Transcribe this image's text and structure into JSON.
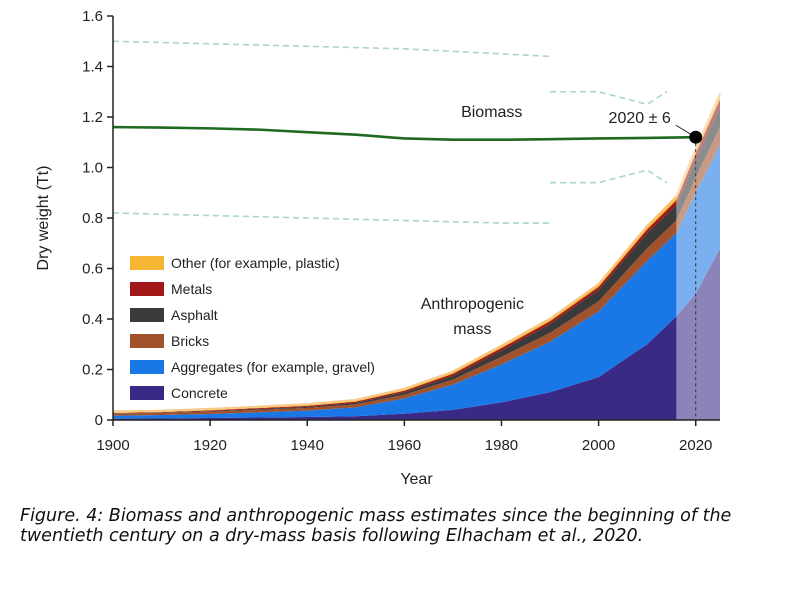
{
  "caption": "Figure. 4: Biomass and anthropogenic mass estimates since the beginning of the twentieth century on a dry-mass basis following Elhacham et al., 2020.",
  "chart_data": {
    "type": "area",
    "xlabel": "Year",
    "ylabel": "Dry weight (Tt)",
    "xlim": [
      1900,
      2025
    ],
    "ylim": [
      0,
      1.6
    ],
    "x_ticks": [
      1900,
      1920,
      1940,
      1960,
      1980,
      2000,
      2020
    ],
    "y_ticks": [
      0,
      0.2,
      0.4,
      0.6,
      0.8,
      1.0,
      1.2,
      1.4,
      1.6
    ],
    "y_tick_labels": [
      "0",
      "0.2",
      "0.4",
      "0.6",
      "0.8",
      "1.0",
      "1.2",
      "1.4",
      "1.6"
    ],
    "grid": false,
    "legend_position": "left",
    "x": [
      1900,
      1910,
      1920,
      1930,
      1940,
      1950,
      1960,
      1970,
      1980,
      1990,
      2000,
      2010,
      2016,
      2020,
      2025
    ],
    "stack_series": [
      {
        "name": "Concrete",
        "color": "#3a2a86",
        "values": [
          0.005,
          0.006,
          0.008,
          0.01,
          0.012,
          0.015,
          0.025,
          0.04,
          0.07,
          0.11,
          0.17,
          0.3,
          0.41,
          0.5,
          0.68
        ]
      },
      {
        "name": "Aggregates (for example, gravel)",
        "color": "#1a78e6",
        "values": [
          0.012,
          0.014,
          0.016,
          0.02,
          0.025,
          0.035,
          0.06,
          0.1,
          0.15,
          0.2,
          0.26,
          0.33,
          0.33,
          0.4,
          0.41
        ]
      },
      {
        "name": "Bricks",
        "color": "#a0522d",
        "values": [
          0.008,
          0.008,
          0.009,
          0.01,
          0.011,
          0.012,
          0.015,
          0.02,
          0.03,
          0.035,
          0.04,
          0.05,
          0.05,
          0.06,
          0.07
        ]
      },
      {
        "name": "Asphalt",
        "color": "#3a3a3a",
        "values": [
          0.001,
          0.001,
          0.002,
          0.003,
          0.004,
          0.006,
          0.01,
          0.015,
          0.025,
          0.035,
          0.045,
          0.06,
          0.06,
          0.07,
          0.08
        ]
      },
      {
        "name": "Metals",
        "color": "#a01818",
        "values": [
          0.002,
          0.002,
          0.003,
          0.004,
          0.004,
          0.005,
          0.006,
          0.008,
          0.01,
          0.011,
          0.012,
          0.015,
          0.02,
          0.025,
          0.03
        ]
      },
      {
        "name": "Other (for example, plastic)",
        "color": "#f5b731",
        "values": [
          0.002,
          0.002,
          0.002,
          0.002,
          0.003,
          0.003,
          0.004,
          0.005,
          0.006,
          0.007,
          0.008,
          0.01,
          0.012,
          0.015,
          0.02
        ]
      }
    ],
    "projection_start_year": 2016,
    "legend_order": [
      "Other (for example, plastic)",
      "Metals",
      "Asphalt",
      "Bricks",
      "Aggregates (for example, gravel)",
      "Concrete"
    ],
    "biomass": {
      "name": "Biomass",
      "color": "#1e6a1e",
      "x": [
        1900,
        1910,
        1920,
        1930,
        1940,
        1950,
        1960,
        1970,
        1980,
        1990,
        2000,
        2010,
        2020
      ],
      "values": [
        1.16,
        1.158,
        1.155,
        1.15,
        1.14,
        1.13,
        1.115,
        1.11,
        1.11,
        1.112,
        1.115,
        1.117,
        1.12
      ],
      "upper_bound": {
        "x": [
          1900,
          1920,
          1940,
          1960,
          1980,
          1990
        ],
        "values": [
          1.5,
          1.49,
          1.48,
          1.47,
          1.45,
          1.44
        ]
      },
      "lower_bound": {
        "x": [
          1900,
          1920,
          1940,
          1960,
          1980,
          1990
        ],
        "values": [
          0.82,
          0.81,
          0.8,
          0.79,
          0.78,
          0.78
        ]
      },
      "bound_color": "#a9d6c2"
    },
    "crossover": {
      "year": 2020,
      "value": 1.12,
      "label": "2020 ± 6",
      "range_upper": {
        "x": [
          1990,
          2000,
          2010,
          2014
        ],
        "values": [
          1.3,
          1.3,
          1.25,
          1.3
        ]
      },
      "range_lower": {
        "x": [
          1990,
          2000,
          2010,
          2014
        ],
        "values": [
          0.94,
          0.94,
          0.99,
          0.94
        ]
      }
    },
    "annotations": [
      {
        "text": "Biomass",
        "x": 1978,
        "y": 1.2
      },
      {
        "text": "Anthropogenic",
        "x": 1974,
        "y": 0.44
      },
      {
        "text": "mass",
        "x": 1974,
        "y": 0.34
      }
    ]
  }
}
